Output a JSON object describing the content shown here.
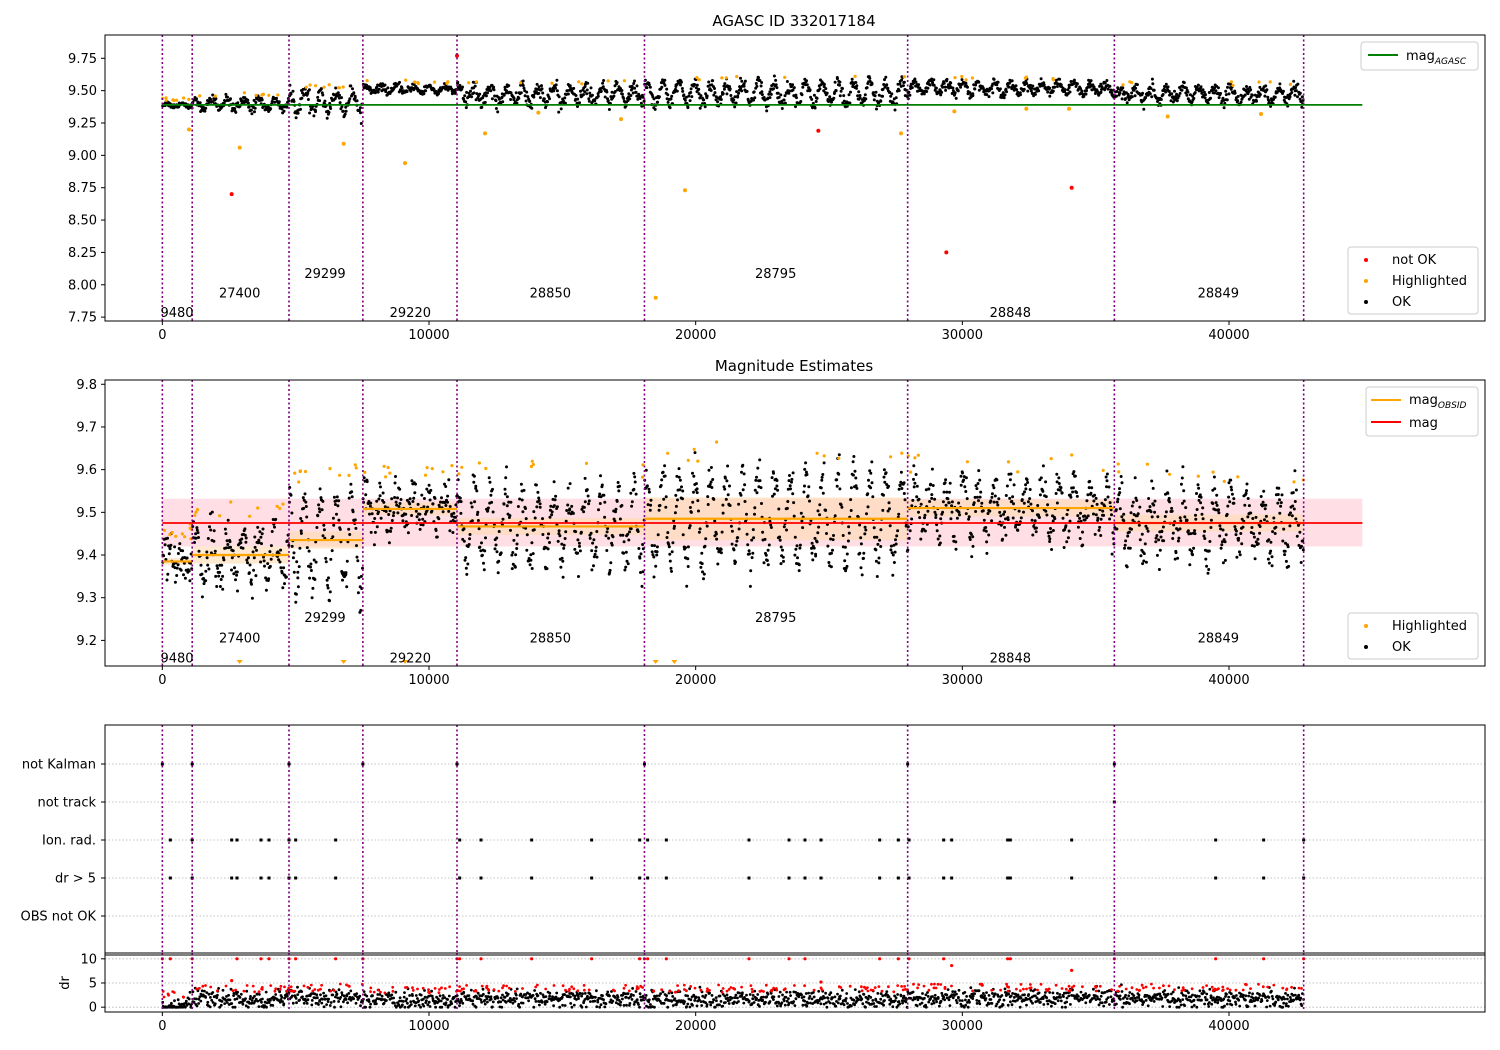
{
  "chart_data": [
    {
      "type": "scatter",
      "title": "AGASC ID 332017184",
      "xlim": [
        -2150,
        49600
      ],
      "ylim": [
        7.72,
        9.93
      ],
      "yticks": [
        7.75,
        8.0,
        8.25,
        8.5,
        8.75,
        9.0,
        9.25,
        9.5,
        9.75
      ],
      "xticks": [
        0,
        10000,
        20000,
        30000,
        40000
      ],
      "obs_boundaries": [
        0,
        1120,
        4750,
        7520,
        11050,
        18080,
        27950,
        35700,
        42800
      ],
      "obsid_labels": [
        {
          "text": "9480",
          "x": 550,
          "y": 7.79
        },
        {
          "text": "27400",
          "x": 2900,
          "y": 7.94
        },
        {
          "text": "29299",
          "x": 6100,
          "y": 8.09
        },
        {
          "text": "29220",
          "x": 9300,
          "y": 7.79
        },
        {
          "text": "28850",
          "x": 14550,
          "y": 7.94
        },
        {
          "text": "28795",
          "x": 23000,
          "y": 8.09
        },
        {
          "text": "28848",
          "x": 31800,
          "y": 7.79
        },
        {
          "text": "28849",
          "x": 39600,
          "y": 7.94
        }
      ],
      "agasc_mag": 9.39,
      "agasc_line_x": [
        0,
        45000
      ],
      "segments": [
        {
          "x0": 0,
          "x1": 1120,
          "base": 9.39,
          "amp": 0.012,
          "sd": 0.01
        },
        {
          "x0": 1120,
          "x1": 4750,
          "base": 9.395,
          "amp": 0.04,
          "sd": 0.02
        },
        {
          "x0": 4750,
          "x1": 7520,
          "base": 9.42,
          "amp": 0.08,
          "sd": 0.03
        },
        {
          "x0": 7520,
          "x1": 11050,
          "base": 9.51,
          "amp": 0.025,
          "sd": 0.015
        },
        {
          "x0": 11050,
          "x1": 18080,
          "base": 9.47,
          "amp": 0.06,
          "sd": 0.03
        },
        {
          "x0": 18080,
          "x1": 27950,
          "base": 9.48,
          "amp": 0.08,
          "sd": 0.03
        },
        {
          "x0": 27950,
          "x1": 35700,
          "base": 9.52,
          "amp": 0.04,
          "sd": 0.02
        },
        {
          "x0": 35700,
          "x1": 42800,
          "base": 9.47,
          "amp": 0.05,
          "sd": 0.025
        }
      ],
      "outliers_not_ok": [
        [
          2600,
          8.7
        ],
        [
          11050,
          9.77
        ],
        [
          24600,
          9.19
        ],
        [
          29400,
          8.25
        ],
        [
          34100,
          8.75
        ]
      ],
      "outliers_highlighted": [
        [
          1000,
          9.2
        ],
        [
          2900,
          9.06
        ],
        [
          6800,
          9.09
        ],
        [
          9100,
          8.94
        ],
        [
          12100,
          9.17
        ],
        [
          14100,
          9.33
        ],
        [
          17200,
          9.28
        ],
        [
          18500,
          7.9
        ],
        [
          19600,
          8.73
        ],
        [
          27700,
          9.17
        ],
        [
          29700,
          9.34
        ],
        [
          32400,
          9.36
        ],
        [
          34000,
          9.36
        ],
        [
          37700,
          9.3
        ],
        [
          41200,
          9.32
        ]
      ],
      "legend_upper": [
        "mag_AGASC"
      ],
      "legend_lower": [
        "not OK",
        "Highlighted",
        "OK"
      ]
    },
    {
      "type": "scatter",
      "title": "Magnitude Estimates",
      "xlim": [
        -2150,
        49600
      ],
      "ylim": [
        9.14,
        9.81
      ],
      "yticks": [
        9.2,
        9.3,
        9.4,
        9.5,
        9.6,
        9.7,
        9.8
      ],
      "xticks": [
        0,
        10000,
        20000,
        30000,
        40000
      ],
      "mag": 9.475,
      "mag_band": [
        9.42,
        9.532
      ],
      "mag_line_x": [
        0,
        45000
      ],
      "obsid_mags": [
        {
          "x0": 0,
          "x1": 1120,
          "mag": 9.385,
          "sd": 0.008
        },
        {
          "x0": 1120,
          "x1": 4750,
          "mag": 9.4,
          "sd": 0.02
        },
        {
          "x0": 4750,
          "x1": 7520,
          "mag": 9.435,
          "sd": 0.02
        },
        {
          "x0": 7520,
          "x1": 11050,
          "mag": 9.508,
          "sd": 0.015
        },
        {
          "x0": 11050,
          "x1": 18080,
          "mag": 9.467,
          "sd": 0.02
        },
        {
          "x0": 18080,
          "x1": 27950,
          "mag": 9.485,
          "sd": 0.05
        },
        {
          "x0": 27950,
          "x1": 35700,
          "mag": 9.51,
          "sd": 0.02
        },
        {
          "x0": 35700,
          "x1": 42800,
          "mag": 9.475,
          "sd": 0.02
        }
      ],
      "obsid_labels": [
        {
          "text": "9480",
          "x": 550,
          "y": 9.16
        },
        {
          "text": "27400",
          "x": 2900,
          "y": 9.207
        },
        {
          "text": "29299",
          "x": 6100,
          "y": 9.255
        },
        {
          "text": "29220",
          "x": 9300,
          "y": 9.16
        },
        {
          "text": "28850",
          "x": 14550,
          "y": 9.207
        },
        {
          "text": "28795",
          "x": 23000,
          "y": 9.255
        },
        {
          "text": "28848",
          "x": 31800,
          "y": 9.16
        },
        {
          "text": "28849",
          "x": 39600,
          "y": 9.207
        }
      ],
      "legend_upper": [
        "mag_OBSID",
        "mag"
      ],
      "legend_lower": [
        "Highlighted",
        "OK"
      ]
    },
    {
      "type": "scatter",
      "title": "",
      "xlim": [
        -2150,
        49600
      ],
      "flag_labels": [
        "not Kalman",
        "not track",
        "Ion. rad.",
        "dr > 5",
        "OBS not OK"
      ],
      "flag_points": {
        "not Kalman": [
          0,
          1120,
          4750,
          7520,
          11050,
          18080,
          27950,
          35700
        ],
        "not track": [
          35700
        ],
        "Ion. rad.": [
          300,
          1120,
          2600,
          2800,
          3700,
          4000,
          4750,
          5000,
          6500,
          11150,
          11950,
          13850,
          16100,
          17900,
          18200,
          18900,
          22000,
          23500,
          24100,
          24700,
          26900,
          27600,
          28000,
          29300,
          29600,
          31700,
          31800,
          34100,
          39500,
          41300,
          42800
        ],
        "dr > 5": [
          300,
          1120,
          2600,
          2800,
          3700,
          4000,
          4750,
          5000,
          6500,
          11150,
          11950,
          13850,
          16100,
          17900,
          18200,
          18900,
          22000,
          23500,
          24100,
          24700,
          26900,
          27600,
          28000,
          29300,
          29600,
          31700,
          31800,
          34100,
          39500,
          41300,
          42800
        ],
        "OBS not OK": []
      },
      "dr_ylabel": "dr",
      "dr_ticks": [
        0,
        5,
        10
      ],
      "dr_ylim": [
        -1,
        11.2
      ],
      "dr_segments": [
        {
          "x0": 0,
          "x1": 1120,
          "base": 0.4
        },
        {
          "x0": 1120,
          "x1": 4750,
          "base": 1.6
        },
        {
          "x0": 4750,
          "x1": 7520,
          "base": 1.8
        },
        {
          "x0": 7520,
          "x1": 11050,
          "base": 1.3
        },
        {
          "x0": 11050,
          "x1": 18080,
          "base": 1.7
        },
        {
          "x0": 18080,
          "x1": 27950,
          "base": 1.6
        },
        {
          "x0": 27950,
          "x1": 35700,
          "base": 1.8
        },
        {
          "x0": 35700,
          "x1": 42800,
          "base": 1.8
        }
      ],
      "dr_high": [
        [
          0,
          10
        ],
        [
          300,
          10
        ],
        [
          1120,
          10
        ],
        [
          2600,
          5.5
        ],
        [
          2800,
          10
        ],
        [
          3700,
          10
        ],
        [
          4000,
          10
        ],
        [
          4750,
          10
        ],
        [
          5000,
          10
        ],
        [
          6500,
          10
        ],
        [
          7520,
          10
        ],
        [
          11050,
          10
        ],
        [
          11150,
          10
        ],
        [
          11950,
          10
        ],
        [
          13850,
          10
        ],
        [
          16100,
          10
        ],
        [
          17900,
          10
        ],
        [
          18080,
          10
        ],
        [
          18200,
          10
        ],
        [
          18900,
          10
        ],
        [
          22000,
          10
        ],
        [
          23500,
          10
        ],
        [
          24100,
          10
        ],
        [
          24700,
          5.2
        ],
        [
          26900,
          10
        ],
        [
          27600,
          10
        ],
        [
          28000,
          10
        ],
        [
          29300,
          10
        ],
        [
          29600,
          8.6
        ],
        [
          31700,
          10
        ],
        [
          31800,
          10
        ],
        [
          34100,
          7.6
        ],
        [
          35700,
          10
        ],
        [
          39500,
          10
        ],
        [
          41300,
          10
        ],
        [
          42800,
          10
        ]
      ]
    }
  ],
  "colors": {
    "ok": "#000000",
    "highlighted": "#ffa500",
    "not_ok": "#ff0000",
    "agasc_line": "#008000",
    "obsid_line": "#ffa500",
    "mag_line": "#ff0000",
    "mag_band": "#ffc0cb",
    "obsid_band": "#ffdab0",
    "boundary": "#800080",
    "grid": "#b0b0b0"
  }
}
